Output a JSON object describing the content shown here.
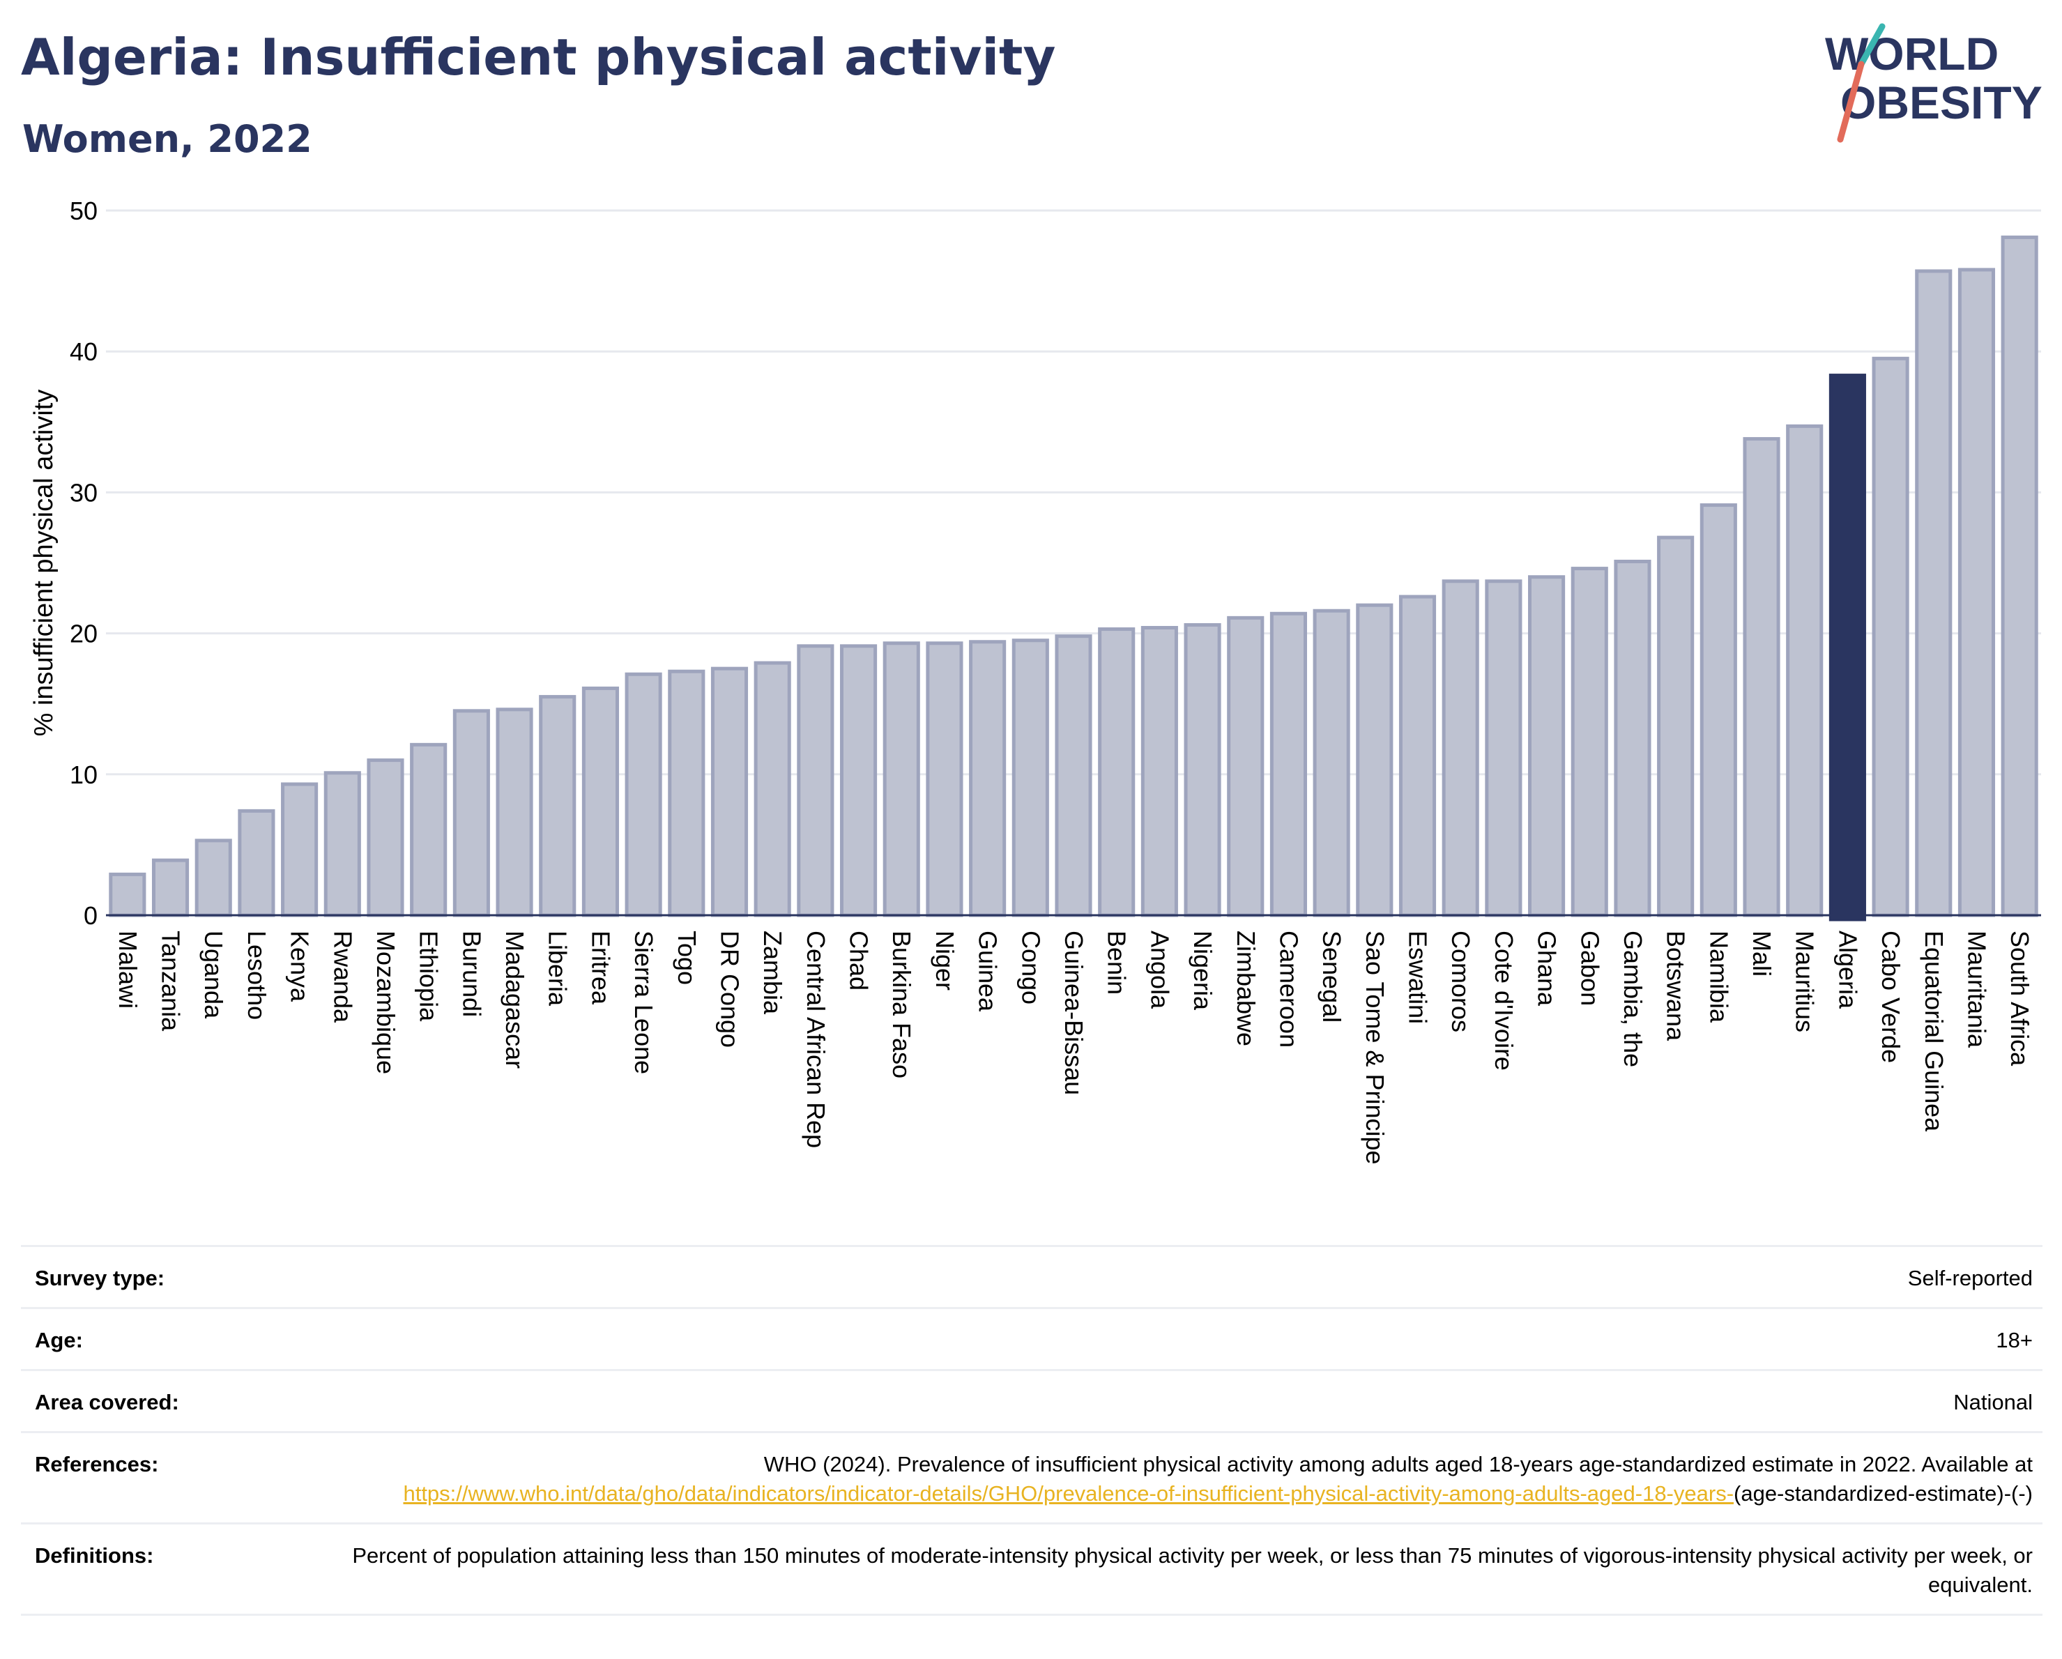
{
  "title": "Algeria: Insufficient physical activity",
  "subtitle": "Women, 2022",
  "logo": {
    "line1": "WORLD",
    "line2": "OBESITY"
  },
  "colors": {
    "highlight": "#2a3560",
    "bar": "#bec2d1",
    "bar_stroke": "#9ea4bd",
    "grid": "#e6e8ee",
    "link": "#e8b321"
  },
  "chart_data": {
    "type": "bar",
    "highlight": "Algeria",
    "ylabel": "% insufficient physical activity",
    "ylim": [
      0,
      50
    ],
    "yticks": [
      0,
      10,
      20,
      30,
      40,
      50
    ],
    "grid": true,
    "categories": [
      "Malawi",
      "Tanzania",
      "Uganda",
      "Lesotho",
      "Kenya",
      "Rwanda",
      "Mozambique",
      "Ethiopia",
      "Burundi",
      "Madagascar",
      "Liberia",
      "Eritrea",
      "Sierra Leone",
      "Togo",
      "DR Congo",
      "Zambia",
      "Central African Rep",
      "Chad",
      "Burkina Faso",
      "Niger",
      "Guinea",
      "Congo",
      "Guinea-Bissau",
      "Benin",
      "Angola",
      "Nigeria",
      "Zimbabwe",
      "Cameroon",
      "Senegal",
      "Sao Tome & Principe",
      "Eswatini",
      "Comoros",
      "Cote d'Ivoire",
      "Ghana",
      "Gabon",
      "Gambia, the",
      "Botswana",
      "Namibia",
      "Mali",
      "Mauritius",
      "Algeria",
      "Cabo Verde",
      "Equatorial Guinea",
      "Mauritania",
      "South Africa"
    ],
    "values": [
      2.9,
      3.9,
      5.3,
      7.4,
      9.3,
      10.1,
      11.0,
      12.1,
      14.5,
      14.6,
      15.5,
      16.1,
      17.1,
      17.3,
      17.5,
      17.9,
      19.1,
      19.1,
      19.3,
      19.3,
      19.4,
      19.5,
      19.8,
      20.3,
      20.4,
      20.6,
      21.1,
      21.4,
      21.6,
      22.0,
      22.6,
      23.7,
      23.7,
      24.0,
      24.6,
      25.1,
      26.8,
      29.1,
      33.8,
      34.7,
      38.3,
      39.5,
      45.7,
      45.8,
      48.1
    ]
  },
  "info": [
    {
      "label": "Survey type:",
      "value": "Self-reported"
    },
    {
      "label": "Age:",
      "value": "18+"
    },
    {
      "label": "Area covered:",
      "value": "National"
    },
    {
      "label": "References:",
      "value_pre": "WHO (2024). Prevalence of insufficient physical activity among adults aged 18-years age-standardized estimate in 2022. Available at",
      "link": "https://www.who.int/data/gho/data/indicators/indicator-details/GHO/prevalence-of-insufficient-physical-activity-among-adults-aged-18-years-",
      "value_post": "(age-standardized-estimate)-(-)"
    },
    {
      "label": "Definitions:",
      "value": "Percent of population attaining less than 150 minutes of moderate-intensity physical activity per week, or less than 75 minutes of vigorous-intensity physical activity per week, or equivalent."
    }
  ]
}
